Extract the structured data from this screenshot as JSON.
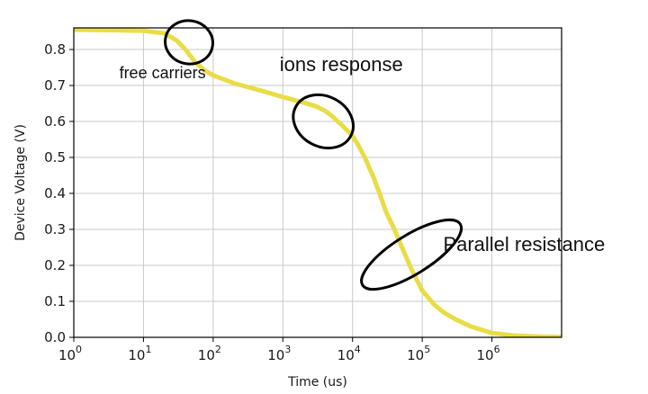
{
  "chart_data": {
    "type": "line",
    "xlabel": "Time (us)",
    "ylabel": "Device Voltage (V)",
    "x_scale": "log",
    "xlim": [
      1,
      10000000
    ],
    "ylim": [
      0,
      0.86
    ],
    "grid": true,
    "x_ticks": [
      {
        "value": 1,
        "base": "10",
        "exp": "0"
      },
      {
        "value": 10,
        "base": "10",
        "exp": "1"
      },
      {
        "value": 100,
        "base": "10",
        "exp": "2"
      },
      {
        "value": 1000,
        "base": "10",
        "exp": "3"
      },
      {
        "value": 10000,
        "base": "10",
        "exp": "4"
      },
      {
        "value": 100000,
        "base": "10",
        "exp": "5"
      },
      {
        "value": 1000000,
        "base": "10",
        "exp": "6"
      }
    ],
    "y_ticks": [
      {
        "value": 0.0,
        "label": "0.0"
      },
      {
        "value": 0.1,
        "label": "0.1"
      },
      {
        "value": 0.2,
        "label": "0.2"
      },
      {
        "value": 0.3,
        "label": "0.3"
      },
      {
        "value": 0.4,
        "label": "0.4"
      },
      {
        "value": 0.5,
        "label": "0.5"
      },
      {
        "value": 0.6,
        "label": "0.6"
      },
      {
        "value": 0.7,
        "label": "0.7"
      },
      {
        "value": 0.8,
        "label": "0.8"
      }
    ],
    "series": [
      {
        "color": "#e8dd46",
        "x": [
          1,
          5,
          10,
          20,
          30,
          40,
          55,
          75,
          100,
          200,
          500,
          1000,
          2000,
          3000,
          4000,
          5000,
          7000,
          10000,
          12000,
          15000,
          20000,
          25000,
          30000,
          40000,
          50000,
          70000,
          100000,
          150000,
          200000,
          300000,
          500000,
          1000000,
          2000000,
          5000000,
          10000000
        ],
        "y": [
          0.855,
          0.853,
          0.852,
          0.845,
          0.825,
          0.8,
          0.765,
          0.742,
          0.728,
          0.706,
          0.685,
          0.668,
          0.652,
          0.642,
          0.63,
          0.616,
          0.59,
          0.56,
          0.535,
          0.5,
          0.445,
          0.395,
          0.35,
          0.3,
          0.255,
          0.19,
          0.13,
          0.09,
          0.07,
          0.05,
          0.03,
          0.012,
          0.005,
          0.002,
          0.001
        ]
      }
    ],
    "annotations": [
      {
        "text": "free carriers",
        "x": 4.5,
        "y": 0.72,
        "ellipse": {
          "cx": 45,
          "cy": 0.82,
          "x_factor": 2.2,
          "dy": 0.06,
          "angle": 10
        }
      },
      {
        "text": "ions response",
        "x": 900,
        "y": 0.74,
        "ellipse": {
          "cx": 3800,
          "cy": 0.6,
          "x_factor": 2.8,
          "dy": 0.07,
          "angle": 28
        }
      },
      {
        "text": "Parallel resistance",
        "x": 200000,
        "y": 0.24,
        "ellipse": {
          "cx": 70000,
          "cy": 0.23,
          "x_factor": 1.9,
          "dy": 0.16,
          "angle": 58
        }
      }
    ]
  }
}
